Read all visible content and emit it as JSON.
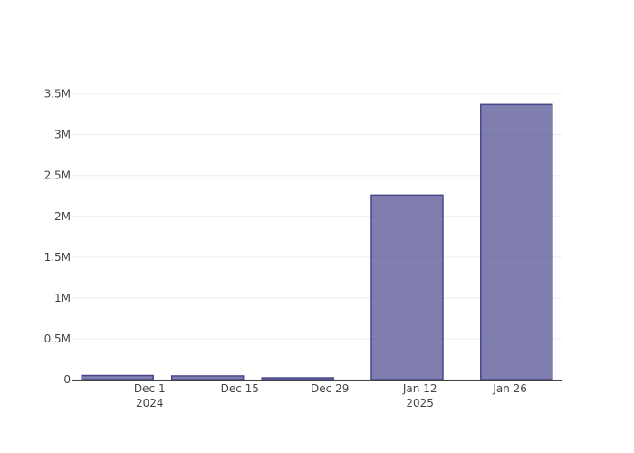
{
  "chart_data": {
    "type": "bar",
    "x": [
      "2024-11-26",
      "2024-12-10",
      "2024-12-24",
      "2025-01-10",
      "2025-01-27"
    ],
    "values": [
      50000,
      45000,
      22000,
      2260000,
      3370000
    ],
    "color": "#48478c",
    "xlim": [
      "2024-11-19",
      "2025-02-03"
    ],
    "xticks": [
      {
        "value": "2024-12-01",
        "label": "Dec 1\n2024"
      },
      {
        "value": "2024-12-15",
        "label": "Dec 15"
      },
      {
        "value": "2024-12-29",
        "label": "Dec 29"
      },
      {
        "value": "2025-01-12",
        "label": "Jan 12\n2025"
      },
      {
        "value": "2025-01-26",
        "label": "Jan 26"
      }
    ],
    "ylim": [
      0,
      3540000
    ],
    "yticks": [
      0,
      {
        "value": 500000,
        "label": "0.5M"
      },
      {
        "value": 1000000,
        "label": "1M"
      },
      {
        "value": 1500000,
        "label": "1.5M"
      },
      {
        "value": 2000000,
        "label": "2M"
      },
      {
        "value": 2500000,
        "label": "2.5M"
      },
      {
        "value": 3000000,
        "label": "3M"
      },
      {
        "value": 3500000,
        "label": "3.5M"
      }
    ],
    "grid": true
  }
}
